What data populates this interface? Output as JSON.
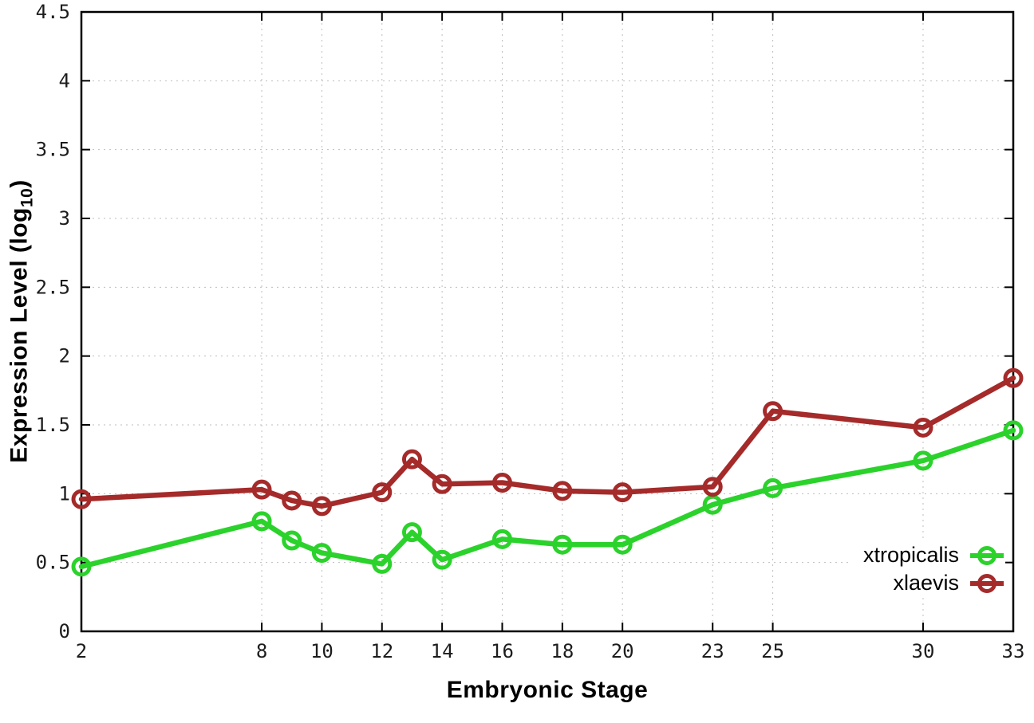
{
  "figure": {
    "background": "#ffffff"
  },
  "chart_data": {
    "type": "line",
    "title": "",
    "xlabel": "Embryonic Stage",
    "ylabel": "Expression Level (log10)",
    "ylabel_parts": {
      "pre": "Expression Level (log",
      "sub": "10",
      "post": ")"
    },
    "xlim": [
      2,
      33
    ],
    "ylim": [
      0,
      4.5
    ],
    "grid": true,
    "grid_style": "dotted",
    "legend_position": "inside bottom-right",
    "x_ticks": [
      2,
      8,
      10,
      12,
      14,
      16,
      18,
      20,
      23,
      25,
      30,
      33
    ],
    "y_ticks": [
      0,
      0.5,
      1,
      1.5,
      2,
      2.5,
      3,
      3.5,
      4,
      4.5
    ],
    "y_tick_labels": [
      "0",
      "0.5",
      "1",
      "1.5",
      "2",
      "2.5",
      "3",
      "3.5",
      "4",
      "4.5"
    ],
    "x": [
      2,
      8,
      9,
      10,
      12,
      13,
      14,
      16,
      18,
      20,
      23,
      25,
      30,
      33
    ],
    "series": [
      {
        "name": "xtropicalis",
        "color": "#2bd22b",
        "marker": "open-circle",
        "values": [
          0.47,
          0.8,
          0.66,
          0.57,
          0.49,
          0.72,
          0.52,
          0.67,
          0.63,
          0.63,
          0.92,
          1.04,
          1.24,
          1.46
        ]
      },
      {
        "name": "xlaevis",
        "color": "#a52a2a",
        "marker": "open-circle",
        "values": [
          0.96,
          1.03,
          0.95,
          0.91,
          1.01,
          1.25,
          1.07,
          1.08,
          1.02,
          1.01,
          1.05,
          1.6,
          1.48,
          1.84
        ]
      }
    ],
    "axis_color": "#000000",
    "grid_color": "#bdbdbd",
    "tick_label_color": "#1c1c1c"
  }
}
